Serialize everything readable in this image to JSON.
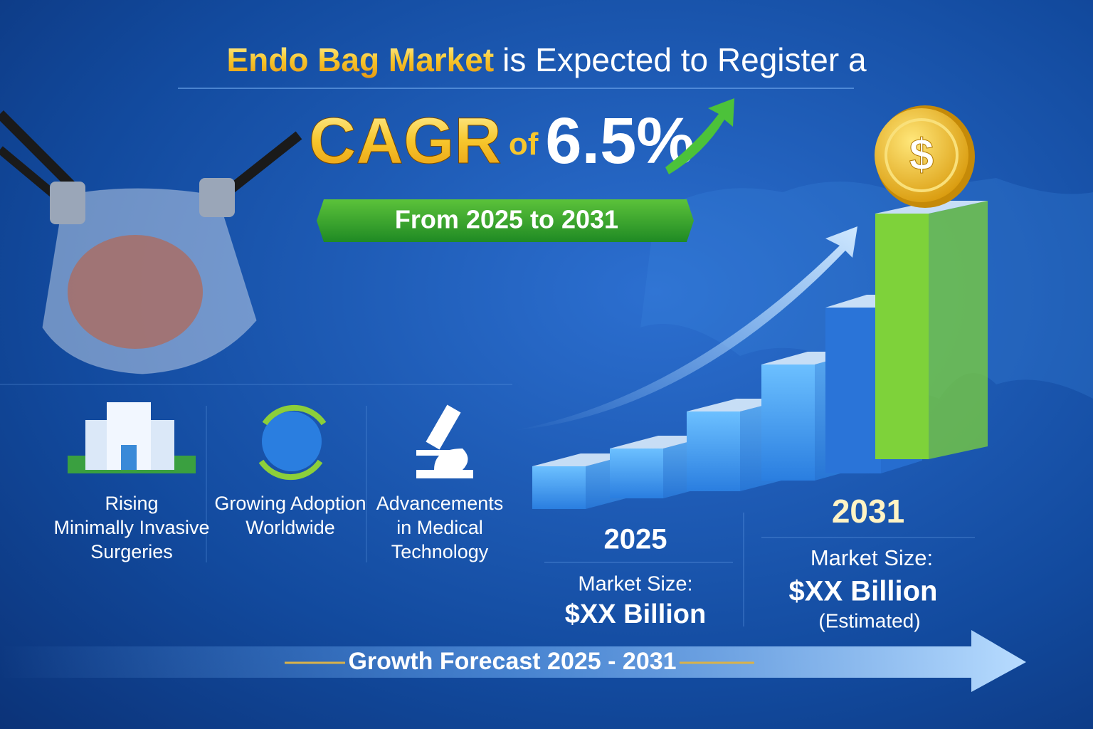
{
  "header": {
    "title_highlight": "Endo Bag Market",
    "title_rest": "is Expected to Register a",
    "cagr_label": "CAGR",
    "cagr_of": "of",
    "cagr_value": "6.5%",
    "period": "From 2025 to 2031"
  },
  "drivers": [
    {
      "lines": [
        "Rising",
        "Minimally Invasive",
        "Surgeries"
      ]
    },
    {
      "lines": [
        "Growing Adoption",
        "Worldwide"
      ]
    },
    {
      "lines": [
        "Advancements",
        "in Medical",
        "Technology"
      ]
    }
  ],
  "coin": "$",
  "market_2025": {
    "year": "2025",
    "label": "Market Size:",
    "value": "$XX Billion"
  },
  "market_2031": {
    "year": "2031",
    "label": "Market Size:",
    "value": "$XX Billion",
    "note": "(Estimated)"
  },
  "footer": "Growth Forecast 2025 - 2031"
}
